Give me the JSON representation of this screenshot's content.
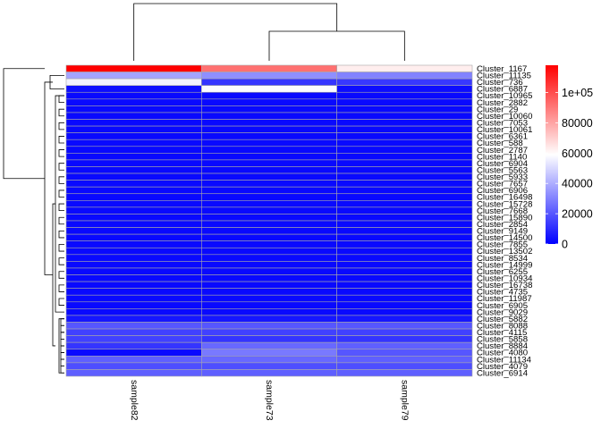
{
  "chart_data": {
    "type": "heatmap",
    "title": "",
    "columns": [
      "sample82",
      "sample73",
      "sample79"
    ],
    "rows": [
      "Cluster_1167",
      "Cluster_11135",
      "Cluster_736",
      "Cluster_6887",
      "Cluster_10965",
      "Cluster_2882",
      "Cluster_29",
      "Cluster_10060",
      "Cluster_7053",
      "Cluster_10061",
      "Cluster_6361",
      "Cluster_588",
      "Cluster_2787",
      "Cluster_1140",
      "Cluster_6904",
      "Cluster_5563",
      "Cluster_5933",
      "Cluster_7657",
      "Cluster_6906",
      "Cluster_16498",
      "Cluster_15728",
      "Cluster_7668",
      "Cluster_15890",
      "Cluster_2854",
      "Cluster_9149",
      "Cluster_14500",
      "Cluster_7855",
      "Cluster_13502",
      "Cluster_8534",
      "Cluster_14999",
      "Cluster_6255",
      "Cluster_10934",
      "Cluster_16738",
      "Cluster_4735",
      "Cluster_11987",
      "Cluster_6905",
      "Cluster_9029",
      "Cluster_5882",
      "Cluster_8088",
      "Cluster_4115",
      "Cluster_5858",
      "Cluster_8884",
      "Cluster_4080",
      "Cluster_11134",
      "Cluster_4079",
      "Cluster_6914"
    ],
    "values": [
      [
        118000,
        92000,
        63000
      ],
      [
        38000,
        33000,
        30000
      ],
      [
        56000,
        12000,
        13000
      ],
      [
        3000,
        58000,
        3000
      ],
      [
        2000,
        2000,
        2000
      ],
      [
        2000,
        2000,
        2000
      ],
      [
        2000,
        2000,
        2000
      ],
      [
        2000,
        2000,
        2000
      ],
      [
        2000,
        2000,
        2000
      ],
      [
        2000,
        2000,
        2000
      ],
      [
        2000,
        2000,
        2000
      ],
      [
        2000,
        2000,
        2000
      ],
      [
        2000,
        2000,
        2000
      ],
      [
        2000,
        2000,
        2000
      ],
      [
        2000,
        2000,
        2000
      ],
      [
        2000,
        2000,
        2000
      ],
      [
        2000,
        2000,
        2000
      ],
      [
        2000,
        2000,
        2000
      ],
      [
        2000,
        2000,
        2000
      ],
      [
        2000,
        2000,
        2000
      ],
      [
        2000,
        2000,
        2000
      ],
      [
        2000,
        2000,
        2000
      ],
      [
        2000,
        2000,
        2000
      ],
      [
        2000,
        2000,
        2000
      ],
      [
        2000,
        2000,
        2000
      ],
      [
        2000,
        2000,
        2000
      ],
      [
        2000,
        2000,
        2000
      ],
      [
        2000,
        2000,
        2000
      ],
      [
        2000,
        2000,
        2000
      ],
      [
        2000,
        2000,
        2000
      ],
      [
        2000,
        2000,
        2000
      ],
      [
        2000,
        2000,
        2000
      ],
      [
        2000,
        2000,
        2000
      ],
      [
        2000,
        2000,
        2000
      ],
      [
        2000,
        2000,
        2000
      ],
      [
        2000,
        2000,
        2000
      ],
      [
        2000,
        2000,
        2000
      ],
      [
        5000,
        5000,
        5000
      ],
      [
        20000,
        20000,
        20000
      ],
      [
        15000,
        15000,
        15000
      ],
      [
        15000,
        12000,
        12000
      ],
      [
        12000,
        24000,
        22000
      ],
      [
        2000,
        28000,
        20000
      ],
      [
        22000,
        24000,
        22000
      ],
      [
        18000,
        18000,
        18000
      ],
      [
        22000,
        22000,
        22000
      ]
    ],
    "legend": {
      "ticks": [
        0,
        20000,
        40000,
        60000,
        80000,
        100000
      ],
      "tick_labels": [
        "0",
        "20000",
        "40000",
        "60000",
        "80000",
        "1e+05"
      ],
      "range": [
        0,
        118000
      ],
      "colors": [
        "#0000ff",
        "#ffffff",
        "#ff0000"
      ],
      "placement": "right"
    },
    "row_dendrogram": true,
    "column_dendrogram": true
  }
}
